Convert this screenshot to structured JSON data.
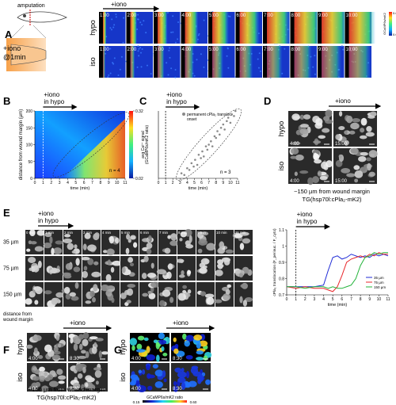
{
  "panel_labels": [
    "A",
    "B",
    "C",
    "D",
    "E",
    "F",
    "G"
  ],
  "panel_a": {
    "schematic_label": "amputation",
    "treatment": [
      "+iono",
      "@1min"
    ],
    "arrow_label": "+iono",
    "rows": [
      "hypo",
      "iso"
    ],
    "timestamps": [
      "1:00",
      "2:00",
      "3:00",
      "4:00",
      "5:00",
      "6:00",
      "7:00",
      "8:00",
      "9:00",
      "10:00"
    ],
    "colorbar_label": "GCaMP6s/mK2",
    "colorbar_ticks": [
      "0.60",
      "0.00"
    ]
  },
  "panel_b": {
    "type": "heatmap",
    "annotation": [
      "+iono",
      "in hypo"
    ],
    "iono_time": 1,
    "xlabel": "time (min)",
    "ylabel": "distance from wound margin (µm)",
    "xlim": [
      0,
      11
    ],
    "xticks": [
      0,
      1,
      2,
      3,
      4,
      5,
      6,
      7,
      8,
      9,
      10,
      11
    ],
    "ylim": [
      0,
      200
    ],
    "yticks": [
      0,
      50,
      100,
      150,
      200
    ],
    "colorbar_label": [
      "avg Ca²⁺ signal",
      "(GCaMP6s/mK2 ratio)"
    ],
    "colorbar_lim": [
      0.02,
      0.32
    ],
    "colorbar_ticks": [
      0.02,
      0.32
    ],
    "note": "n = 4"
  },
  "panel_c": {
    "type": "scatter",
    "annotation": [
      "+iono",
      "in hypo"
    ],
    "iono_time": 1,
    "legend": [
      "permanent cPla₂ transloc.",
      "onset"
    ],
    "color": "#8a8a8a",
    "xlabel": "time (min)",
    "xlim": [
      0,
      11
    ],
    "xticks": [
      0,
      1,
      2,
      3,
      4,
      5,
      6,
      7,
      8,
      9,
      10,
      11
    ],
    "ylim": [
      0,
      200
    ],
    "x": [
      3.2,
      3.6,
      4.0,
      4.3,
      4.6,
      4.9,
      5.1,
      5.4,
      5.6,
      5.9,
      6.1,
      6.3,
      6.6,
      6.8,
      7.0,
      7.3,
      7.5,
      7.8,
      8.0,
      8.2,
      8.5,
      8.7,
      9.0,
      9.2,
      9.5,
      9.7,
      10.0,
      10.2,
      10.5,
      10.7
    ],
    "y": [
      15,
      10,
      30,
      25,
      45,
      35,
      55,
      40,
      70,
      60,
      80,
      65,
      95,
      85,
      100,
      110,
      95,
      125,
      120,
      140,
      130,
      150,
      160,
      145,
      170,
      180,
      165,
      190,
      185,
      200
    ],
    "note": "n = 3"
  },
  "panel_d": {
    "arrow_label": "+iono",
    "rows": [
      "hypo",
      "iso"
    ],
    "timestamps": [
      "4:00",
      "15:00"
    ],
    "captions": [
      "~150 µm from wound margin",
      "TG(hsp70l:cPla₂-mK2)"
    ]
  },
  "panel_e": {
    "annotation": [
      "+iono",
      "in hypo"
    ],
    "rows": [
      "35 µm",
      "75 µm",
      "150 µm"
    ],
    "timestamps": [
      "0 min",
      "1 min",
      "2 min",
      "3 min",
      "4 min",
      "5 min",
      "6 min",
      "7 min",
      "8 min",
      "9 min",
      "10 min",
      "11 min"
    ],
    "caption": [
      "distance from",
      "wound margin"
    ],
    "chart": {
      "type": "line",
      "annotation": [
        "+iono",
        "in hypo"
      ],
      "iono_time": 1,
      "xlabel": "time (min)",
      "ylabel": "cPla₂ translocation (F_perinuc. / F_cyto)",
      "xlim": [
        0,
        11
      ],
      "xticks": [
        0,
        1,
        2,
        3,
        4,
        5,
        6,
        7,
        8,
        9,
        10,
        11
      ],
      "ylim": [
        0.7,
        1.1
      ],
      "yticks": [
        0.7,
        0.8,
        0.9,
        1,
        1.1
      ],
      "x": [
        0,
        1,
        2,
        3,
        4,
        4.5,
        5,
        5.5,
        6,
        6.5,
        7,
        7.5,
        8,
        8.5,
        9,
        9.5,
        10,
        10.5,
        11
      ],
      "series": [
        {
          "name": "35 µm",
          "color": "#1f2bd6",
          "values": [
            0.75,
            0.75,
            0.75,
            0.75,
            0.76,
            0.85,
            0.93,
            0.94,
            0.92,
            0.93,
            0.95,
            0.94,
            0.93,
            0.94,
            0.93,
            0.95,
            0.94,
            0.95,
            0.94
          ]
        },
        {
          "name": "75 µm",
          "color": "#e8262a",
          "values": [
            0.75,
            0.74,
            0.75,
            0.74,
            0.74,
            0.73,
            0.72,
            0.75,
            0.82,
            0.9,
            0.92,
            0.93,
            0.94,
            0.93,
            0.95,
            0.94,
            0.96,
            0.95,
            0.95
          ]
        },
        {
          "name": "150 µm",
          "color": "#23b33a",
          "values": [
            0.75,
            0.75,
            0.74,
            0.75,
            0.75,
            0.74,
            0.75,
            0.74,
            0.74,
            0.75,
            0.76,
            0.8,
            0.88,
            0.93,
            0.94,
            0.96,
            0.95,
            0.96,
            0.96
          ]
        }
      ]
    }
  },
  "panel_f": {
    "arrow_label": "+iono",
    "rows": [
      "hypo",
      "iso"
    ],
    "timestamps": [
      "4:00",
      "8:30"
    ],
    "captions": [
      "~150 µm from wound margin",
      "TG(hsp70l:cPla₂-mK2)"
    ]
  },
  "panel_g": {
    "arrow_label": "+iono",
    "rows": [
      "hypo",
      "iso"
    ],
    "timestamps": [
      "4:00",
      "8:30"
    ],
    "colorbar_label": "GCaMP6s/mK2 ratio",
    "colorbar_ticks": [
      "0.15",
      "0.60"
    ]
  }
}
